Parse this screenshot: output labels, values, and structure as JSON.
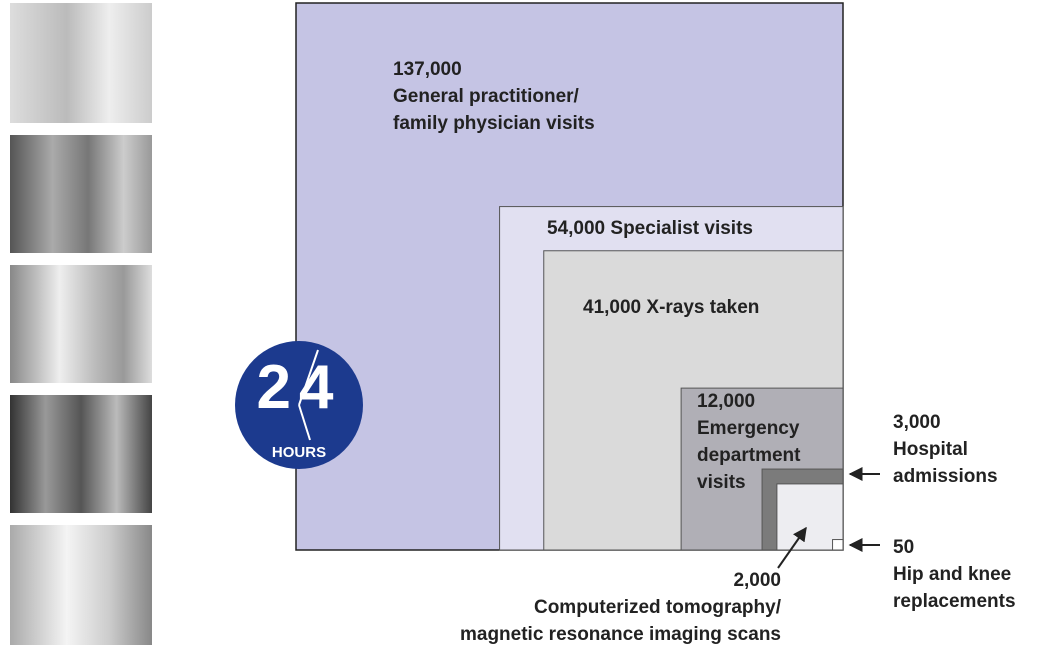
{
  "chart_data": {
    "type": "nested-squares",
    "categories": [
      "General practitioner/\nfamily physician visits",
      "Specialist visits",
      "X-rays taken",
      "Emergency\ndepartment\nvisits",
      "Hospital\nadmissions",
      "Computerized tomography/\nmagnetic resonance imaging scans",
      "Hip and knee\nreplacements"
    ],
    "values": [
      137000,
      54000,
      41000,
      12000,
      3000,
      2000,
      50
    ],
    "value_labels": [
      "137,000",
      "54,000",
      "41,000",
      "12,000",
      "3,000",
      "2,000",
      "50"
    ],
    "colors": [
      "#c5c4e4",
      "#e1e0f1",
      "#dadada",
      "#b0afb6",
      "#7b7b7b",
      "#ededf1",
      "#ffffff"
    ]
  },
  "badge": {
    "number": "24",
    "label": "HOURS"
  }
}
